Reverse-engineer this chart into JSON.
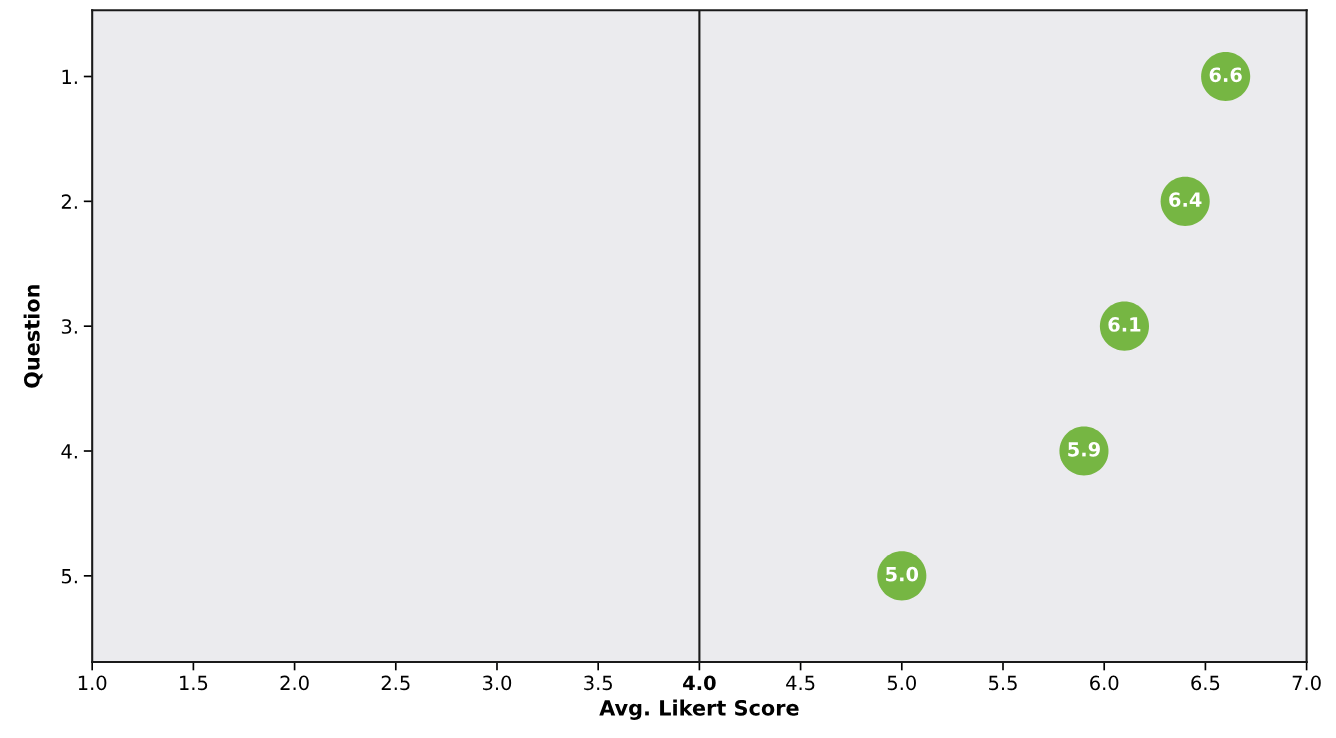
{
  "chart_data": {
    "type": "scatter",
    "orientation": "horizontal",
    "xlabel": "Avg. Likert Score",
    "ylabel": "Question",
    "categories": [
      "1.",
      "2.",
      "3.",
      "4.",
      "5."
    ],
    "values": [
      6.6,
      6.4,
      6.1,
      5.9,
      5.0
    ],
    "color": "#76b643",
    "marker": "circle",
    "value_labels": [
      "6.6",
      "6.4",
      "6.1",
      "5.9",
      "5.0"
    ],
    "xlim": [
      1.0,
      7.0
    ],
    "xticks": [
      {
        "value": 1.0,
        "label": "1.0"
      },
      {
        "value": 1.5,
        "label": "1.5"
      },
      {
        "value": 2.0,
        "label": "2.0"
      },
      {
        "value": 2.5,
        "label": "2.5"
      },
      {
        "value": 3.0,
        "label": "3.0"
      },
      {
        "value": 3.5,
        "label": "3.5"
      },
      {
        "value": 4.0,
        "label": "4.0"
      },
      {
        "value": 4.5,
        "label": "4.5"
      },
      {
        "value": 5.0,
        "label": "5.0"
      },
      {
        "value": 5.5,
        "label": "5.5"
      },
      {
        "value": 6.0,
        "label": "6.0"
      },
      {
        "value": 6.5,
        "label": "6.5"
      },
      {
        "value": 7.0,
        "label": "7.0"
      }
    ],
    "ref_lines": [
      {
        "axis": "x",
        "value": 4.0,
        "color": "#1a1a1a",
        "line_style": "solid"
      }
    ],
    "grid": false,
    "legend": false
  }
}
